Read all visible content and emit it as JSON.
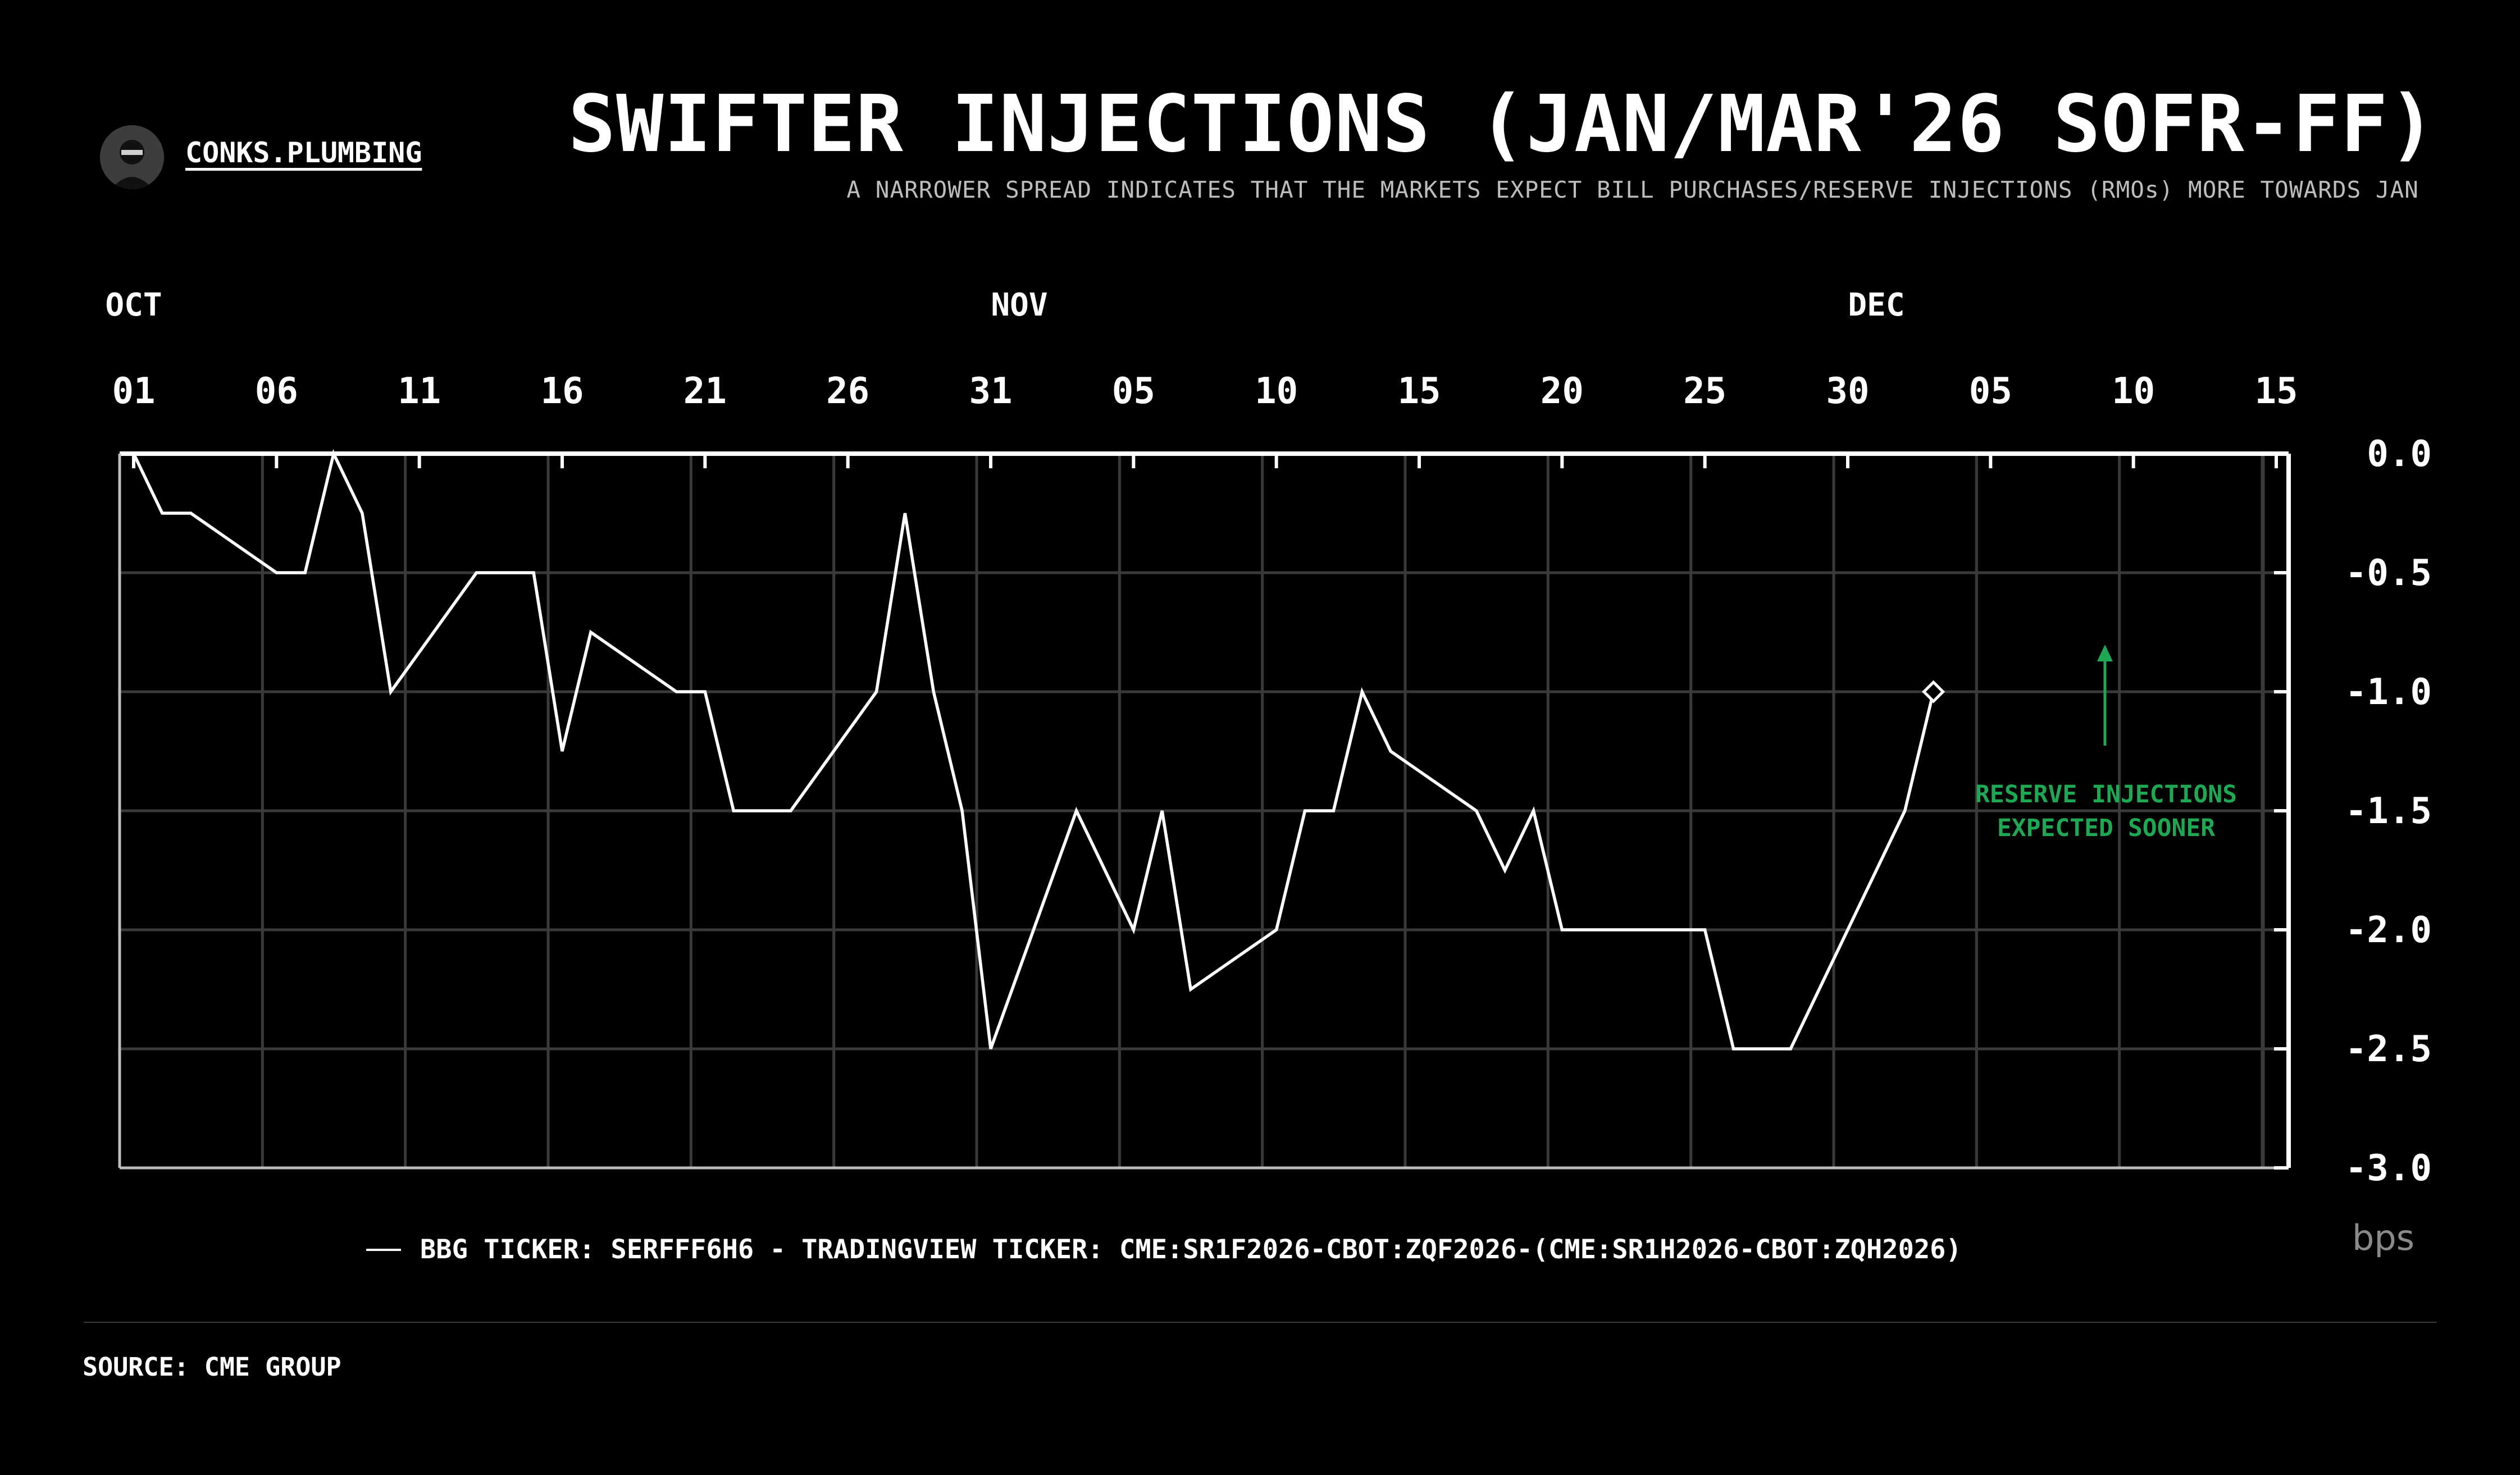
{
  "header": {
    "brand": "CONKS.PLUMBING",
    "title": "SWIFTER INJECTIONS (JAN/MAR'26 SOFR-FF)",
    "subtitle": "A NARROWER SPREAD INDICATES THAT THE MARKETS EXPECT BILL PURCHASES/RESERVE INJECTIONS (RMOs) MORE TOWARDS JAN"
  },
  "footer": {
    "source": "SOURCE: CME GROUP",
    "unit": "bps"
  },
  "colors": {
    "background": "#000000",
    "line": "#ffffff",
    "grid": "#3a3a3a",
    "annotation": "#1fa854"
  },
  "icons": {
    "logo": "avatar-icon",
    "marker": "diamond-marker-icon",
    "arrow": "arrow-up-icon"
  },
  "chart_data": {
    "type": "line",
    "title": "SWIFTER INJECTIONS (JAN/MAR'26 SOFR-FF)",
    "ylabel": "",
    "xlabel": "",
    "ylim": [
      -3.0,
      0.0
    ],
    "yticks": [
      "0.0",
      "-0.5",
      "-1.0",
      "-1.5",
      "-2.0",
      "-2.5",
      "-3.0"
    ],
    "x_day_labels": [
      "01",
      "06",
      "11",
      "16",
      "21",
      "26",
      "31",
      "05",
      "10",
      "15",
      "20",
      "25",
      "30",
      "05",
      "10",
      "15"
    ],
    "x_month_labels": [
      "OCT",
      "NOV",
      "DEC"
    ],
    "grid": true,
    "legend_position": "bottom",
    "series": [
      {
        "name": "BBG TICKER: SERFFF6H6 - TRADINGVIEW TICKER: CME:SR1F2026-CBOT:ZQF2026-(CME:SR1H2026-CBOT:ZQH2026)",
        "x": [
          "2025-10-01",
          "2025-10-02",
          "2025-10-03",
          "2025-10-06",
          "2025-10-07",
          "2025-10-08",
          "2025-10-09",
          "2025-10-10",
          "2025-10-13",
          "2025-10-14",
          "2025-10-15",
          "2025-10-16",
          "2025-10-17",
          "2025-10-20",
          "2025-10-21",
          "2025-10-22",
          "2025-10-23",
          "2025-10-24",
          "2025-10-27",
          "2025-10-28",
          "2025-10-29",
          "2025-10-30",
          "2025-10-31",
          "2025-11-03",
          "2025-11-05",
          "2025-11-06",
          "2025-11-07",
          "2025-11-10",
          "2025-11-11",
          "2025-11-12",
          "2025-11-13",
          "2025-11-14",
          "2025-11-17",
          "2025-11-18",
          "2025-11-19",
          "2025-11-20",
          "2025-11-25",
          "2025-11-26",
          "2025-11-28",
          "2025-12-02",
          "2025-12-03"
        ],
        "y": [
          0.0,
          -0.25,
          -0.25,
          -0.5,
          -0.5,
          0.0,
          -0.25,
          -1.0,
          -0.5,
          -0.5,
          -0.5,
          -1.25,
          -0.75,
          -1.0,
          -1.0,
          -1.5,
          -1.5,
          -1.5,
          -1.0,
          -0.25,
          -1.0,
          -1.5,
          -2.5,
          -1.5,
          -2.0,
          -1.5,
          -2.25,
          -2.0,
          -1.5,
          -1.5,
          -1.0,
          -1.25,
          -1.5,
          -1.75,
          -1.5,
          -2.0,
          -2.0,
          -2.5,
          -2.5,
          -1.5,
          -1.0
        ]
      }
    ],
    "annotations": [
      {
        "text": "RESERVE INJECTIONS\nEXPECTED SOONER"
      }
    ]
  }
}
